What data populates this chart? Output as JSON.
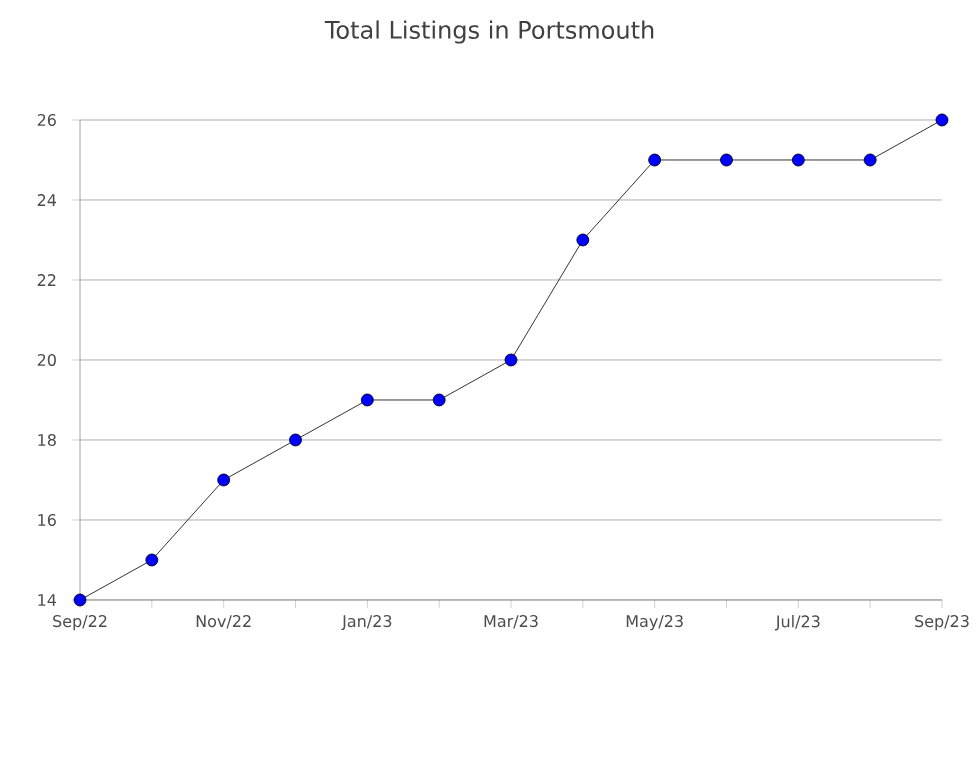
{
  "chart_data": {
    "type": "line",
    "title": "Total Listings in Portsmouth",
    "categories": [
      "Sep/22",
      null,
      "Nov/22",
      null,
      "Jan/23",
      null,
      "Mar/23",
      null,
      "May/23",
      null,
      "Jul/23",
      null,
      "Sep/23"
    ],
    "series": [
      {
        "color": "#0000ff",
        "values": [
          14,
          15,
          17,
          18,
          19,
          19,
          20,
          23,
          25,
          25,
          25,
          25,
          26
        ]
      }
    ],
    "ylim": [
      14,
      26
    ],
    "yticks": [
      14,
      16,
      18,
      20,
      22,
      24,
      26
    ],
    "grid": "y",
    "marker": "circle",
    "line_style": "solid"
  }
}
